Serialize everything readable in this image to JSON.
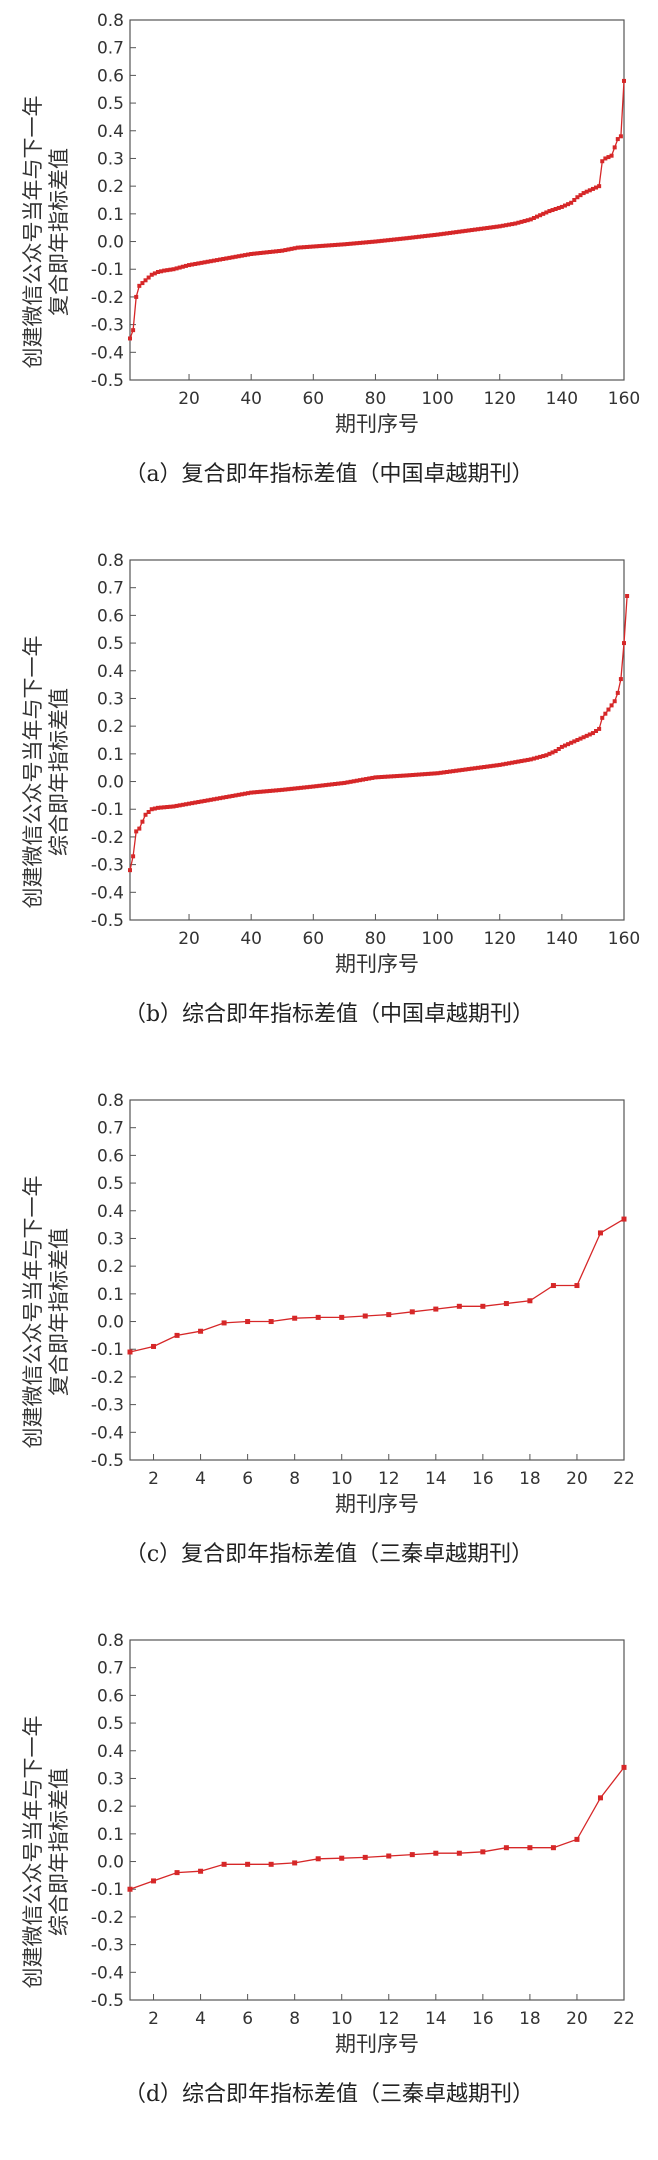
{
  "chart_data": [
    {
      "type": "line",
      "ylabel_lines": [
        "创建微信公众号当年与下一年",
        "复合即年指标差值"
      ],
      "xlabel": "期刊序号",
      "caption": "（a）复合即年指标差值（中国卓越期刊）",
      "xlim": [
        1,
        160
      ],
      "ylim": [
        -0.5,
        0.8
      ],
      "xticks": [
        20,
        40,
        60,
        80,
        100,
        120,
        140,
        160
      ],
      "yticks": [
        -0.5,
        -0.4,
        -0.3,
        -0.2,
        -0.1,
        0.0,
        0.1,
        0.2,
        0.3,
        0.4,
        0.5,
        0.6,
        0.7,
        0.8
      ],
      "series_color": "#d62728",
      "series": [
        {
          "anchors": [
            [
              1,
              -0.35
            ],
            [
              2,
              -0.32
            ],
            [
              3,
              -0.2
            ],
            [
              4,
              -0.16
            ],
            [
              6,
              -0.14
            ],
            [
              8,
              -0.12
            ],
            [
              10,
              -0.11
            ],
            [
              12,
              -0.105
            ],
            [
              15,
              -0.1
            ],
            [
              20,
              -0.085
            ],
            [
              30,
              -0.065
            ],
            [
              40,
              -0.045
            ],
            [
              50,
              -0.033
            ],
            [
              55,
              -0.022
            ],
            [
              60,
              -0.018
            ],
            [
              70,
              -0.01
            ],
            [
              80,
              0.0
            ],
            [
              90,
              0.012
            ],
            [
              100,
              0.025
            ],
            [
              110,
              0.04
            ],
            [
              120,
              0.055
            ],
            [
              125,
              0.065
            ],
            [
              130,
              0.08
            ],
            [
              133,
              0.095
            ],
            [
              136,
              0.11
            ],
            [
              140,
              0.125
            ],
            [
              143,
              0.14
            ],
            [
              145,
              0.16
            ],
            [
              147,
              0.175
            ],
            [
              149,
              0.185
            ],
            [
              151,
              0.195
            ],
            [
              152,
              0.2
            ],
            [
              153,
              0.29
            ],
            [
              154,
              0.3
            ],
            [
              156,
              0.31
            ],
            [
              158,
              0.37
            ],
            [
              159,
              0.38
            ],
            [
              160,
              0.58
            ]
          ]
        }
      ]
    },
    {
      "type": "line",
      "ylabel_lines": [
        "创建微信公众号当年与下一年",
        "综合即年指标差值"
      ],
      "xlabel": "期刊序号",
      "caption": "（b）综合即年指标差值（中国卓越期刊）",
      "xlim": [
        1,
        160
      ],
      "ylim": [
        -0.5,
        0.8
      ],
      "xticks": [
        20,
        40,
        60,
        80,
        100,
        120,
        140,
        160
      ],
      "yticks": [
        -0.5,
        -0.4,
        -0.3,
        -0.2,
        -0.1,
        0.0,
        0.1,
        0.2,
        0.3,
        0.4,
        0.5,
        0.6,
        0.7,
        0.8
      ],
      "series_color": "#d62728",
      "series": [
        {
          "anchors": [
            [
              1,
              -0.32
            ],
            [
              2,
              -0.27
            ],
            [
              3,
              -0.18
            ],
            [
              4,
              -0.17
            ],
            [
              6,
              -0.12
            ],
            [
              8,
              -0.1
            ],
            [
              10,
              -0.095
            ],
            [
              15,
              -0.09
            ],
            [
              20,
              -0.08
            ],
            [
              30,
              -0.06
            ],
            [
              40,
              -0.04
            ],
            [
              50,
              -0.03
            ],
            [
              60,
              -0.018
            ],
            [
              70,
              -0.005
            ],
            [
              80,
              0.015
            ],
            [
              90,
              0.022
            ],
            [
              100,
              0.03
            ],
            [
              110,
              0.045
            ],
            [
              120,
              0.06
            ],
            [
              130,
              0.08
            ],
            [
              135,
              0.095
            ],
            [
              138,
              0.11
            ],
            [
              140,
              0.125
            ],
            [
              143,
              0.14
            ],
            [
              145,
              0.15
            ],
            [
              148,
              0.165
            ],
            [
              150,
              0.175
            ],
            [
              152,
              0.19
            ],
            [
              153,
              0.23
            ],
            [
              155,
              0.26
            ],
            [
              157,
              0.29
            ],
            [
              158,
              0.32
            ],
            [
              159,
              0.37
            ],
            [
              160,
              0.5
            ],
            [
              161,
              0.67
            ]
          ]
        }
      ]
    },
    {
      "type": "line",
      "ylabel_lines": [
        "创建微信公众号当年与下一年",
        "复合即年指标差值"
      ],
      "xlabel": "期刊序号",
      "caption": "（c）复合即年指标差值（三秦卓越期刊）",
      "xlim": [
        1,
        22
      ],
      "ylim": [
        -0.5,
        0.8
      ],
      "xticks": [
        2,
        4,
        6,
        8,
        10,
        12,
        14,
        16,
        18,
        20,
        22
      ],
      "yticks": [
        -0.5,
        -0.4,
        -0.3,
        -0.2,
        -0.1,
        0.0,
        0.1,
        0.2,
        0.3,
        0.4,
        0.5,
        0.6,
        0.7,
        0.8
      ],
      "series_color": "#d62728",
      "series": [
        {
          "x": [
            1,
            2,
            3,
            4,
            5,
            6,
            7,
            8,
            9,
            10,
            11,
            12,
            13,
            14,
            15,
            16,
            17,
            18,
            19,
            20,
            21,
            22
          ],
          "y": [
            -0.11,
            -0.09,
            -0.05,
            -0.035,
            -0.005,
            0.0,
            0.0,
            0.012,
            0.015,
            0.015,
            0.02,
            0.025,
            0.035,
            0.045,
            0.055,
            0.055,
            0.065,
            0.075,
            0.13,
            0.13,
            0.32,
            0.37
          ]
        }
      ]
    },
    {
      "type": "line",
      "ylabel_lines": [
        "创建微信公众号当年与下一年",
        "综合即年指标差值"
      ],
      "xlabel": "期刊序号",
      "caption": "（d）综合即年指标差值（三秦卓越期刊）",
      "xlim": [
        1,
        22
      ],
      "ylim": [
        -0.5,
        0.8
      ],
      "xticks": [
        2,
        4,
        6,
        8,
        10,
        12,
        14,
        16,
        18,
        20,
        22
      ],
      "yticks": [
        -0.5,
        -0.4,
        -0.3,
        -0.2,
        -0.1,
        0.0,
        0.1,
        0.2,
        0.3,
        0.4,
        0.5,
        0.6,
        0.7,
        0.8
      ],
      "series_color": "#d62728",
      "series": [
        {
          "x": [
            1,
            2,
            3,
            4,
            5,
            6,
            7,
            8,
            9,
            10,
            11,
            12,
            13,
            14,
            15,
            16,
            17,
            18,
            19,
            20,
            21,
            22
          ],
          "y": [
            -0.1,
            -0.07,
            -0.04,
            -0.035,
            -0.01,
            -0.01,
            -0.01,
            -0.005,
            0.01,
            0.012,
            0.015,
            0.02,
            0.025,
            0.03,
            0.03,
            0.035,
            0.05,
            0.05,
            0.05,
            0.08,
            0.23,
            0.34
          ]
        }
      ]
    }
  ]
}
